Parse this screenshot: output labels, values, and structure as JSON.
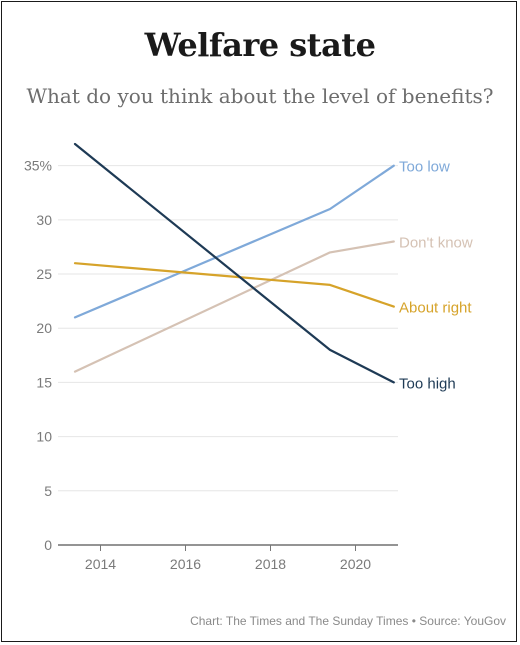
{
  "header": {
    "title": "Welfare state",
    "subtitle": "What do you think about the level of benefits?"
  },
  "footer": {
    "credit": "Chart: The Times and The Sunday Times • Source: YouGov"
  },
  "chart_data": {
    "type": "line",
    "title": "Welfare state",
    "subtitle": "What do you think about the level of benefits?",
    "xlabel": "",
    "ylabel": "",
    "xlim": [
      2013,
      2021
    ],
    "ylim": [
      0,
      37
    ],
    "x_ticks": [
      2014,
      2016,
      2018,
      2020
    ],
    "x_tick_labels": [
      "2014",
      "2016",
      "2018",
      "2020"
    ],
    "y_ticks": [
      0,
      5,
      10,
      15,
      20,
      25,
      30,
      35
    ],
    "y_tick_labels": [
      "0",
      "5",
      "10",
      "15",
      "20",
      "25",
      "30",
      "35%"
    ],
    "grid": true,
    "legend": "direct labels at line ends (right)",
    "series": [
      {
        "name": "Too low",
        "color": "#7fa9d9",
        "x": [
          2013.4,
          2019.4,
          2020.9
        ],
        "y": [
          21,
          31,
          35
        ]
      },
      {
        "name": "Don't know",
        "color": "#d5c2b4",
        "x": [
          2013.4,
          2019.4,
          2020.9
        ],
        "y": [
          16,
          27,
          28
        ]
      },
      {
        "name": "About right",
        "color": "#d6a32a",
        "x": [
          2013.4,
          2019.4,
          2020.9
        ],
        "y": [
          26,
          24,
          22
        ]
      },
      {
        "name": "Too high",
        "color": "#1e3a55",
        "x": [
          2013.4,
          2019.4,
          2020.9
        ],
        "y": [
          37,
          18,
          15
        ]
      }
    ]
  }
}
